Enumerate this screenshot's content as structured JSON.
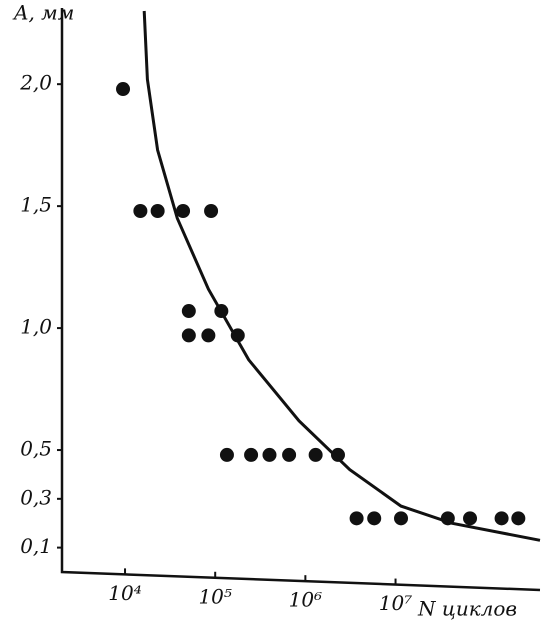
{
  "chart_data": {
    "type": "scatter",
    "y_label": "A, мм",
    "x_label": "N циклов",
    "xlog": true,
    "xlim": [
      2000,
      400000000
    ],
    "ylim": [
      0,
      2.3
    ],
    "xticks": [
      {
        "value": 10000,
        "label": "10⁴"
      },
      {
        "value": 100000,
        "label": "10⁵"
      },
      {
        "value": 1000000,
        "label": "10⁶"
      },
      {
        "value": 10000000,
        "label": "10⁷"
      }
    ],
    "yticks": [
      {
        "value": 0.1,
        "label": "0,1"
      },
      {
        "value": 0.3,
        "label": "0,3"
      },
      {
        "value": 0.5,
        "label": "0,5"
      },
      {
        "value": 1.0,
        "label": "1,0"
      },
      {
        "value": 1.5,
        "label": "1,5"
      },
      {
        "value": 2.0,
        "label": "2,0"
      }
    ],
    "color": "#111111",
    "points": {
      "x": [
        9500,
        14800,
        23000,
        44000,
        90000,
        51000,
        117000,
        51000,
        84000,
        178000,
        135000,
        250000,
        400000,
        660000,
        1300000,
        2300000,
        3700000,
        5800000,
        11500000,
        38000000,
        67000000,
        150000000,
        230000000
      ],
      "y": [
        1.98,
        1.48,
        1.48,
        1.48,
        1.48,
        1.07,
        1.07,
        0.97,
        0.97,
        0.97,
        0.48,
        0.48,
        0.48,
        0.48,
        0.48,
        0.48,
        0.22,
        0.22,
        0.22,
        0.22,
        0.22,
        0.22,
        0.22
      ]
    },
    "curve": {
      "x": [
        16300,
        17700,
        23000,
        38000,
        84000,
        235000,
        850000,
        3100000,
        11500000,
        42000000,
        400000000
      ],
      "y": [
        2.3,
        2.02,
        1.73,
        1.45,
        1.16,
        0.87,
        0.62,
        0.42,
        0.27,
        0.2,
        0.13
      ]
    }
  }
}
